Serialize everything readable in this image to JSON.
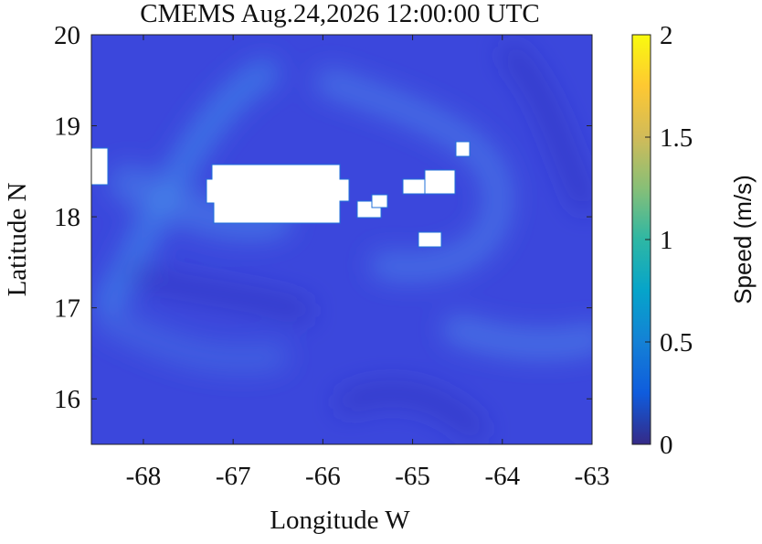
{
  "chart_data": {
    "type": "heatmap",
    "title": "CMEMS Aug.24,2026 12:00:00 UTC",
    "x_label": "Longitude W",
    "y_label": "Latitude N",
    "xlim": [
      -68.58,
      -63
    ],
    "xticks": [
      -68,
      -67,
      -66,
      -65,
      -64,
      -63
    ],
    "ylim": [
      15.5,
      20
    ],
    "yticks": [
      16,
      17,
      18,
      19,
      20
    ],
    "colorbar": {
      "label": "Speed (m/s)",
      "lim": [
        0,
        2
      ],
      "ticks": [
        0,
        0.5,
        1,
        1.5,
        2
      ],
      "colormap": [
        "#352a87",
        "#0f5cdd",
        "#1481d6",
        "#06a4ca",
        "#2eb7a4",
        "#87bf77",
        "#d1bb59",
        "#fec832",
        "#f9fb0e"
      ]
    }
  }
}
